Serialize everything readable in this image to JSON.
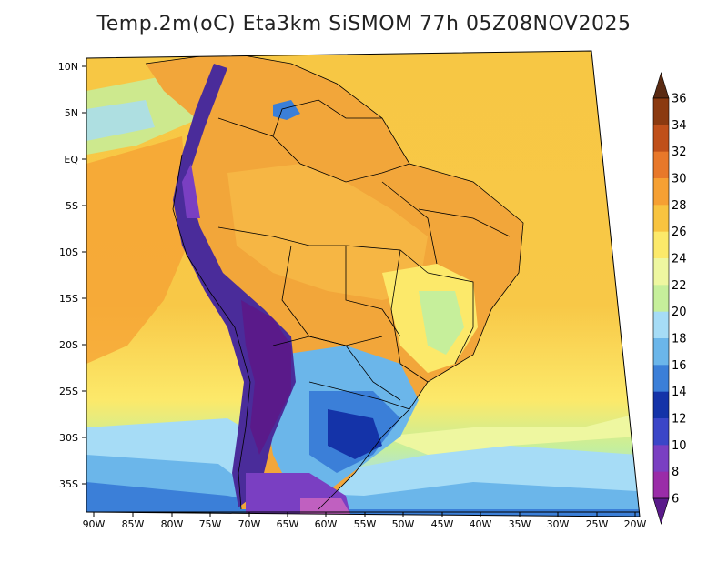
{
  "title": "Temp.2m(oC) Eta3km SiSMOM 77h 05Z08NOV2025",
  "lat_labels": [
    "10N",
    "5N",
    "EQ",
    "5S",
    "10S",
    "15S",
    "20S",
    "25S",
    "30S",
    "35S"
  ],
  "lon_labels": [
    "90W",
    "85W",
    "80W",
    "75W",
    "70W",
    "65W",
    "60W",
    "55W",
    "50W",
    "45W",
    "40W",
    "35W",
    "30W",
    "25W",
    "20W"
  ],
  "colorbar": {
    "labels": [
      "36",
      "34",
      "32",
      "30",
      "28",
      "26",
      "24",
      "22",
      "20",
      "18",
      "16",
      "14",
      "12",
      "10",
      "8",
      "6"
    ],
    "colors": [
      "#5a2a12",
      "#8b3a10",
      "#c0501a",
      "#e8782a",
      "#f6a033",
      "#f8c440",
      "#fce96a",
      "#eef7a0",
      "#c6ef9b",
      "#a6dcf6",
      "#6bb6ea",
      "#3b7fd8",
      "#1433a8",
      "#3b46c8",
      "#7a3fc2",
      "#9a2ca8",
      "#5a1a8a"
    ]
  },
  "colors": {
    "ocean": "#f7c744",
    "land_warm": "#f2a63a",
    "andes": "#7a3fc2",
    "south_cool": "#6bb6ea"
  }
}
